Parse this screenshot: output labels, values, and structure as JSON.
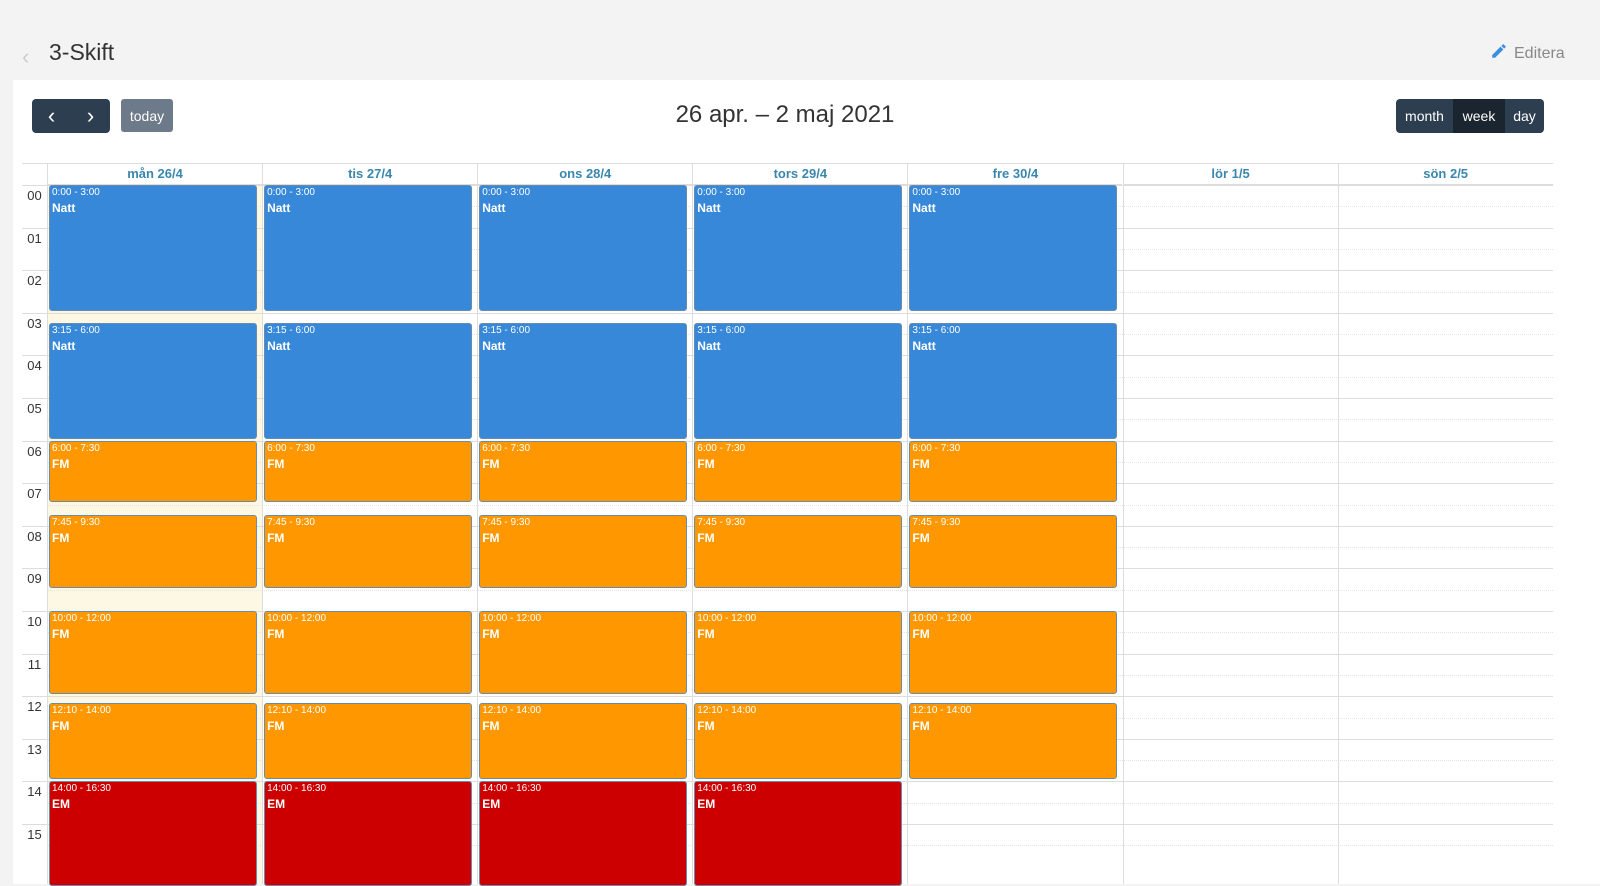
{
  "header": {
    "title": "3-Skift",
    "edit_label": "Editera"
  },
  "toolbar": {
    "prev": "‹",
    "next": "›",
    "today": "today",
    "range": "26 apr. – 2 maj 2021",
    "views": [
      "month",
      "week",
      "day"
    ],
    "active_view": "week"
  },
  "days": [
    "mån 26/4",
    "tis 27/4",
    "ons 28/4",
    "tors 29/4",
    "fre 30/4",
    "lör 1/5",
    "sön 2/5"
  ],
  "today_index": 0,
  "hours": [
    "00",
    "01",
    "02",
    "03",
    "04",
    "05",
    "06",
    "07",
    "08",
    "09",
    "10",
    "11",
    "12",
    "13",
    "14",
    "15"
  ],
  "colors": {
    "Natt": "#3788d8",
    "FM": "#ff9800",
    "EM": "#cc0000"
  },
  "events": [
    {
      "days": [
        0,
        1,
        2,
        3,
        4
      ],
      "time": "0:00 - 3:00",
      "title": "Natt",
      "start": 0,
      "end": 3
    },
    {
      "days": [
        0,
        1,
        2,
        3,
        4
      ],
      "time": "3:15 - 6:00",
      "title": "Natt",
      "start": 3.25,
      "end": 6
    },
    {
      "days": [
        0,
        1,
        2,
        3,
        4
      ],
      "time": "6:00 - 7:30",
      "title": "FM",
      "start": 6,
      "end": 7.5
    },
    {
      "days": [
        0,
        1,
        2,
        3,
        4
      ],
      "time": "7:45 - 9:30",
      "title": "FM",
      "start": 7.75,
      "end": 9.5
    },
    {
      "days": [
        0,
        1,
        2,
        3,
        4
      ],
      "time": "10:00 - 12:00",
      "title": "FM",
      "start": 10,
      "end": 12
    },
    {
      "days": [
        0,
        1,
        2,
        3,
        4
      ],
      "time": "12:10 - 14:00",
      "title": "FM",
      "start": 12.1667,
      "end": 14
    },
    {
      "days": [
        0,
        1,
        2,
        3
      ],
      "time": "14:00 - 16:30",
      "title": "EM",
      "start": 14,
      "end": 16.5
    }
  ]
}
